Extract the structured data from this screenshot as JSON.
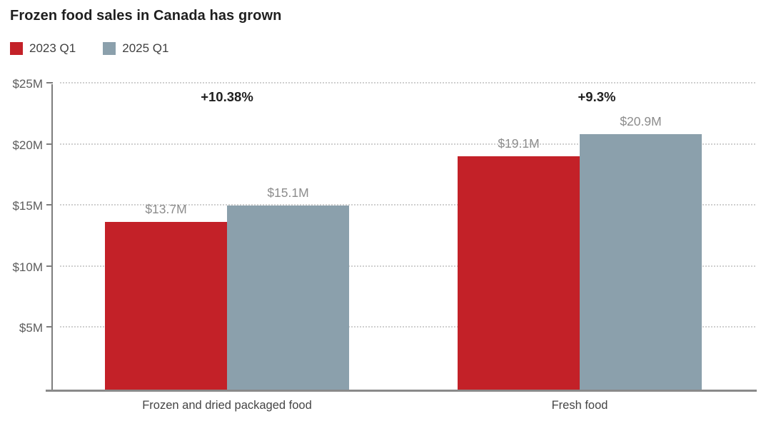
{
  "chart_data": {
    "type": "bar",
    "title": "Frozen food sales in Canada has grown",
    "categories": [
      "Frozen and dried packaged food",
      "Fresh food"
    ],
    "series": [
      {
        "name": "2023 Q1",
        "color": "#c32128",
        "values": [
          13.7,
          19.1
        ],
        "value_labels": [
          "$13.7M",
          "$19.1M"
        ]
      },
      {
        "name": "2025 Q1",
        "color": "#8ba0ac",
        "values": [
          15.1,
          20.9
        ],
        "value_labels": [
          "$15.1M",
          "$20.9M"
        ]
      }
    ],
    "annotations": [
      "+10.38%",
      "+9.3%"
    ],
    "y_axis": {
      "ylim": [
        0,
        25
      ],
      "ticks": [
        5,
        10,
        15,
        20,
        25
      ],
      "tick_labels": [
        "$5M",
        "$10M",
        "$15M",
        "$20M",
        "$25M"
      ]
    },
    "xlabel": "",
    "ylabel": "",
    "grid": "horizontal-dotted",
    "legend_position": "top-left",
    "colors": {
      "series_2023": "#c32128",
      "series_2025": "#8ba0ac",
      "axis": "#7d7d7d",
      "gridline": "#cfcfcf",
      "value_label_text": "#8c8c8c",
      "title_text": "#1f1f1f"
    }
  }
}
